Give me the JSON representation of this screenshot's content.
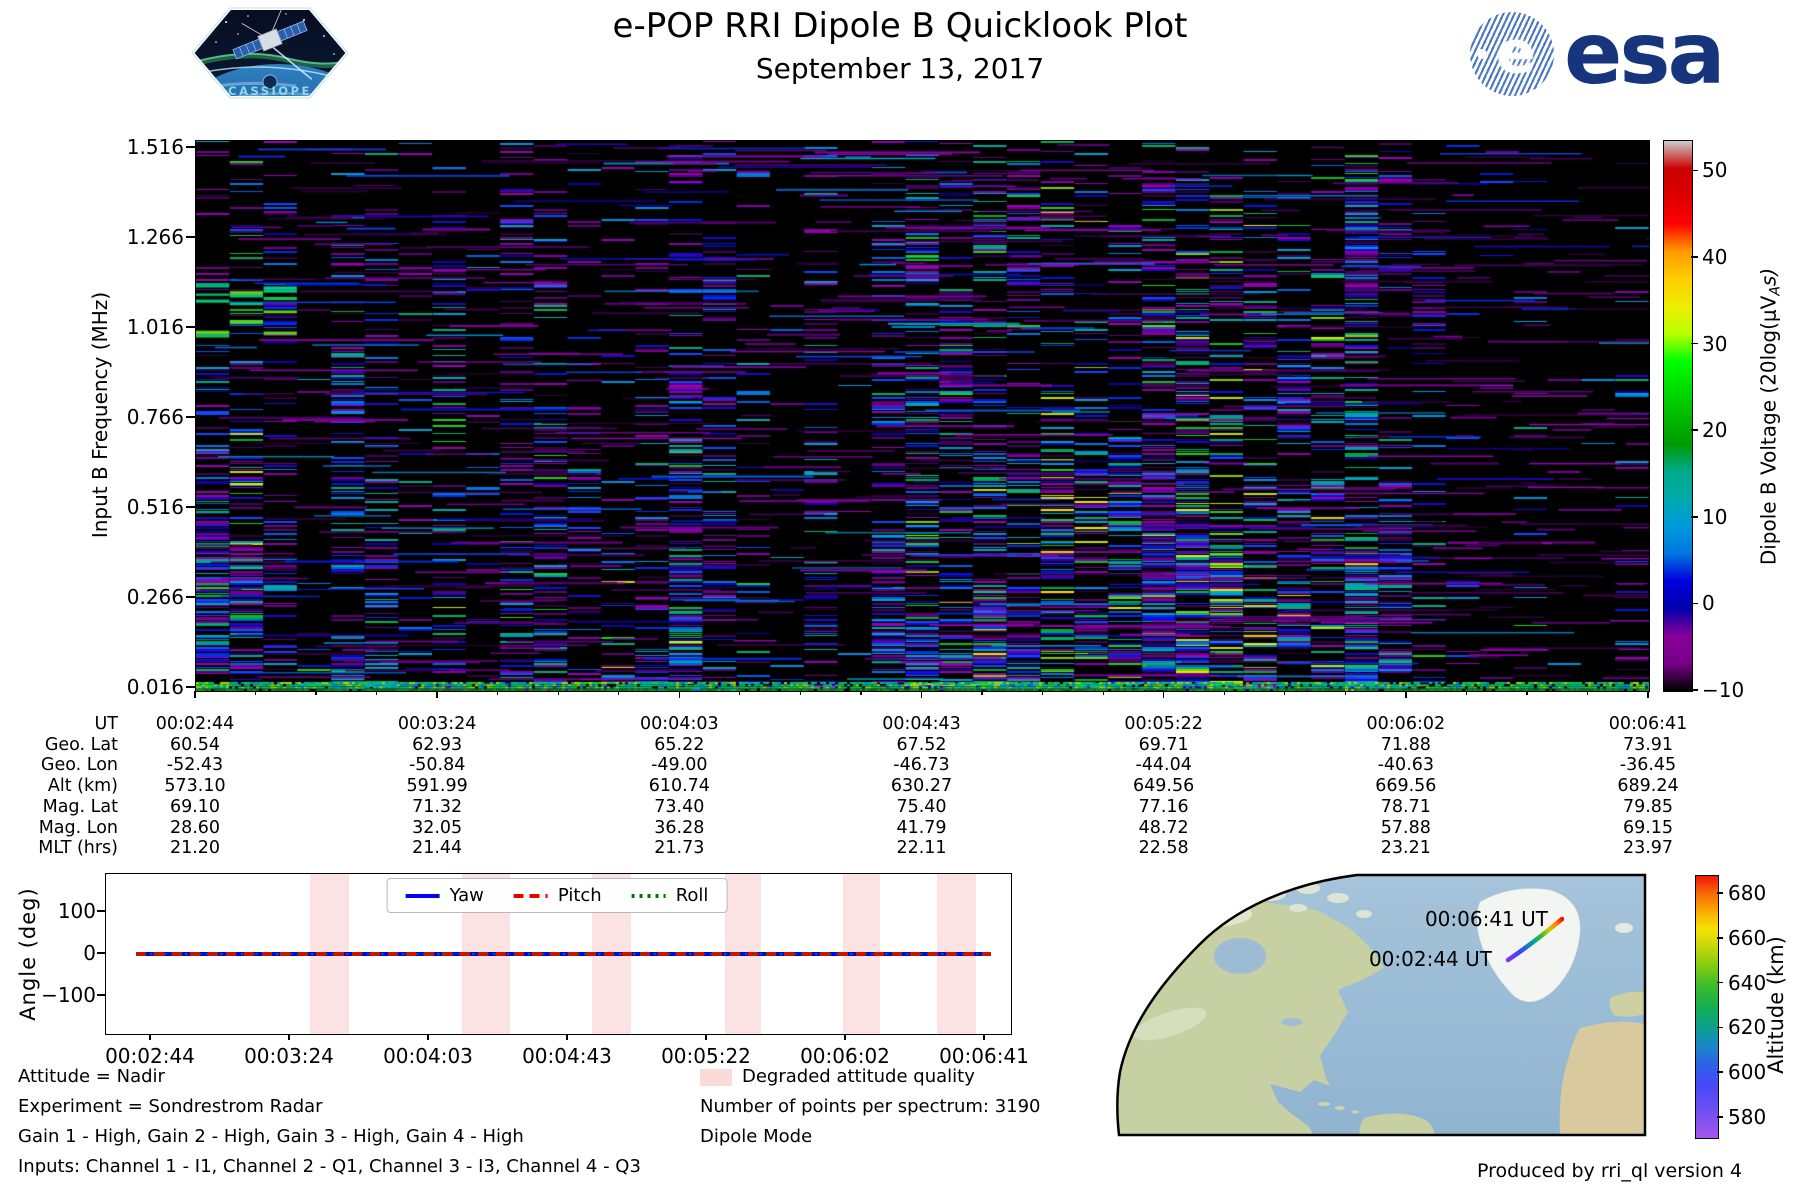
{
  "header": {
    "title": "e-POP RRI Dipole B Quicklook Plot",
    "subtitle": "September 13, 2017",
    "cassiope_label": "CASSIOPE",
    "esa_label": "esa"
  },
  "spectrogram": {
    "ylabel": "Input B Frequency (MHz)",
    "yticks": [
      "1.516",
      "1.266",
      "1.016",
      "0.766",
      "0.516",
      "0.266",
      "0.016"
    ],
    "colorbar": {
      "label_text": "Dipole B Voltage (20log(μV",
      "label_sub": "A",
      "label_suffix": "s)",
      "ticks": [
        "50",
        "40",
        "30",
        "20",
        "10",
        "0",
        "−10"
      ],
      "tick_values": [
        50,
        40,
        30,
        20,
        10,
        0,
        -10
      ],
      "vmin": -10,
      "vmax": 53.5,
      "colormap": "nipy_spectral"
    },
    "texture": {
      "seed": 20170913,
      "columns": 43
    }
  },
  "ephemeris": {
    "rows": [
      {
        "label": "UT",
        "values": [
          "00:02:44",
          "00:03:24",
          "00:04:03",
          "00:04:43",
          "00:05:22",
          "00:06:02",
          "00:06:41"
        ]
      },
      {
        "label": "Geo. Lat",
        "values": [
          "60.54",
          "62.93",
          "65.22",
          "67.52",
          "69.71",
          "71.88",
          "73.91"
        ]
      },
      {
        "label": "Geo. Lon",
        "values": [
          "-52.43",
          "-50.84",
          "-49.00",
          "-46.73",
          "-44.04",
          "-40.63",
          "-36.45"
        ]
      },
      {
        "label": "Alt (km)",
        "values": [
          "573.10",
          "591.99",
          "610.74",
          "630.27",
          "649.56",
          "669.56",
          "689.24"
        ]
      },
      {
        "label": "Mag. Lat",
        "values": [
          "69.10",
          "71.32",
          "73.40",
          "75.40",
          "77.16",
          "78.71",
          "79.85"
        ]
      },
      {
        "label": "Mag. Lon",
        "values": [
          "28.60",
          "32.05",
          "36.28",
          "41.79",
          "48.72",
          "57.88",
          "69.15"
        ]
      },
      {
        "label": "MLT (hrs)",
        "values": [
          "21.20",
          "21.44",
          "21.73",
          "22.11",
          "22.58",
          "23.21",
          "23.97"
        ]
      }
    ]
  },
  "attitude_plot": {
    "ylabel": "Angle (deg)",
    "yticks": [
      "100",
      "0",
      "−100"
    ],
    "ytick_values": [
      100,
      0,
      -100
    ],
    "xticks": [
      "00:02:44",
      "00:03:24",
      "00:04:03",
      "00:04:43",
      "00:05:22",
      "00:06:02",
      "00:06:41"
    ],
    "legend": [
      {
        "label": "Yaw",
        "color": "#0000ee",
        "style": "solid"
      },
      {
        "label": "Pitch",
        "color": "#ee0000",
        "style": "dashed"
      },
      {
        "label": "Roll",
        "color": "#007700",
        "style": "dotted"
      }
    ],
    "degraded_bands": [
      [
        0.2254,
        0.2685
      ],
      [
        0.3934,
        0.4464
      ],
      [
        0.537,
        0.5801
      ],
      [
        0.684,
        0.7238
      ],
      [
        0.8144,
        0.8552
      ],
      [
        0.9182,
        0.9613
      ]
    ]
  },
  "notes": {
    "left": [
      "Attitude = Nadir",
      "Experiment = Sondrestrom Radar",
      "Gain 1 - High, Gain 2 - High, Gain 3 - High, Gain 4 - High",
      "Inputs: Channel 1 - I1, Channel 2 - Q1, Channel 3 - I3, Channel 4 - Q3"
    ],
    "degraded_legend": "Degraded attitude quality",
    "points_per_spectrum": "Number of points per spectrum: 3190",
    "mode": "Dipole Mode"
  },
  "map": {
    "start_label": "00:02:44 UT",
    "end_label": "00:06:41 UT",
    "colorbar": {
      "label": "Altitude (km)",
      "ticks": [
        "680",
        "660",
        "640",
        "620",
        "600",
        "580"
      ],
      "tick_values": [
        680,
        660,
        640,
        620,
        600,
        580
      ]
    }
  },
  "footer": {
    "credit": "Produced by rri_ql version 4"
  },
  "chart_data": [
    {
      "type": "heatmap",
      "title": "e-POP RRI Dipole B Quicklook Plot",
      "subtitle": "September 13, 2017",
      "ylabel": "Input B Frequency (MHz)",
      "y_ticks_MHz": [
        1.516,
        1.266,
        1.016,
        0.766,
        0.516,
        0.266,
        0.016
      ],
      "colorbar_label": "Dipole B Voltage (20log(μVAs)",
      "colorbar_ticks": [
        50,
        40,
        30,
        20,
        10,
        0,
        -10
      ],
      "colormap": "nipy_spectral",
      "x_rows": {
        "UT": [
          "00:02:44",
          "00:03:24",
          "00:04:03",
          "00:04:43",
          "00:05:22",
          "00:06:02",
          "00:06:41"
        ],
        "Geo. Lat": [
          60.54,
          62.93,
          65.22,
          67.52,
          69.71,
          71.88,
          73.91
        ],
        "Geo. Lon": [
          -52.43,
          -50.84,
          -49.0,
          -46.73,
          -44.04,
          -40.63,
          -36.45
        ],
        "Alt (km)": [
          573.1,
          591.99,
          610.74,
          630.27,
          649.56,
          669.56,
          689.24
        ],
        "Mag. Lat": [
          69.1,
          71.32,
          73.4,
          75.4,
          77.16,
          78.71,
          79.85
        ],
        "Mag. Lon": [
          28.6,
          32.05,
          36.28,
          41.79,
          48.72,
          57.88,
          69.15
        ],
        "MLT (hrs)": [
          21.2,
          21.44,
          21.73,
          22.11,
          22.58,
          23.21,
          23.97
        ]
      },
      "description": "Dense RRI spectrogram: mostly black background with horizontal streaks in purple/magenta, blue, cyan, teal and green arranged in vertical spectrum columns; brightest green/cyan activity near the bottom frequencies and in the 00:04:40-00:05:50 region; far right (after ~00:06:10) mostly black with sparse purple streaks."
    },
    {
      "type": "line",
      "ylabel": "Angle (deg)",
      "y_ticks": [
        100,
        0,
        -100
      ],
      "x": [
        "00:02:44",
        "00:03:24",
        "00:04:03",
        "00:04:43",
        "00:05:22",
        "00:06:02",
        "00:06:41"
      ],
      "series": [
        {
          "name": "Yaw",
          "values": [
            0,
            0,
            0,
            0,
            0,
            0,
            0
          ]
        },
        {
          "name": "Pitch",
          "values": [
            0,
            0,
            0,
            0,
            0,
            0,
            0
          ]
        },
        {
          "name": "Roll",
          "values": [
            0,
            0,
            0,
            0,
            0,
            0,
            0
          ]
        }
      ],
      "legend_position": "top center",
      "annotations": "Six vertical pink bands mark intervals of degraded attitude quality"
    },
    {
      "type": "map",
      "projection": "nearside perspective over North Atlantic",
      "track_start_label": "00:02:44 UT",
      "track_end_label": "00:06:41 UT",
      "track_location": "short rainbow ground track over western Greenland",
      "colorbar_label": "Altitude (km)",
      "colorbar_ticks": [
        680,
        660,
        640,
        620,
        600,
        580
      ],
      "track_altitude_range_km": [
        573.1,
        689.24
      ]
    }
  ]
}
